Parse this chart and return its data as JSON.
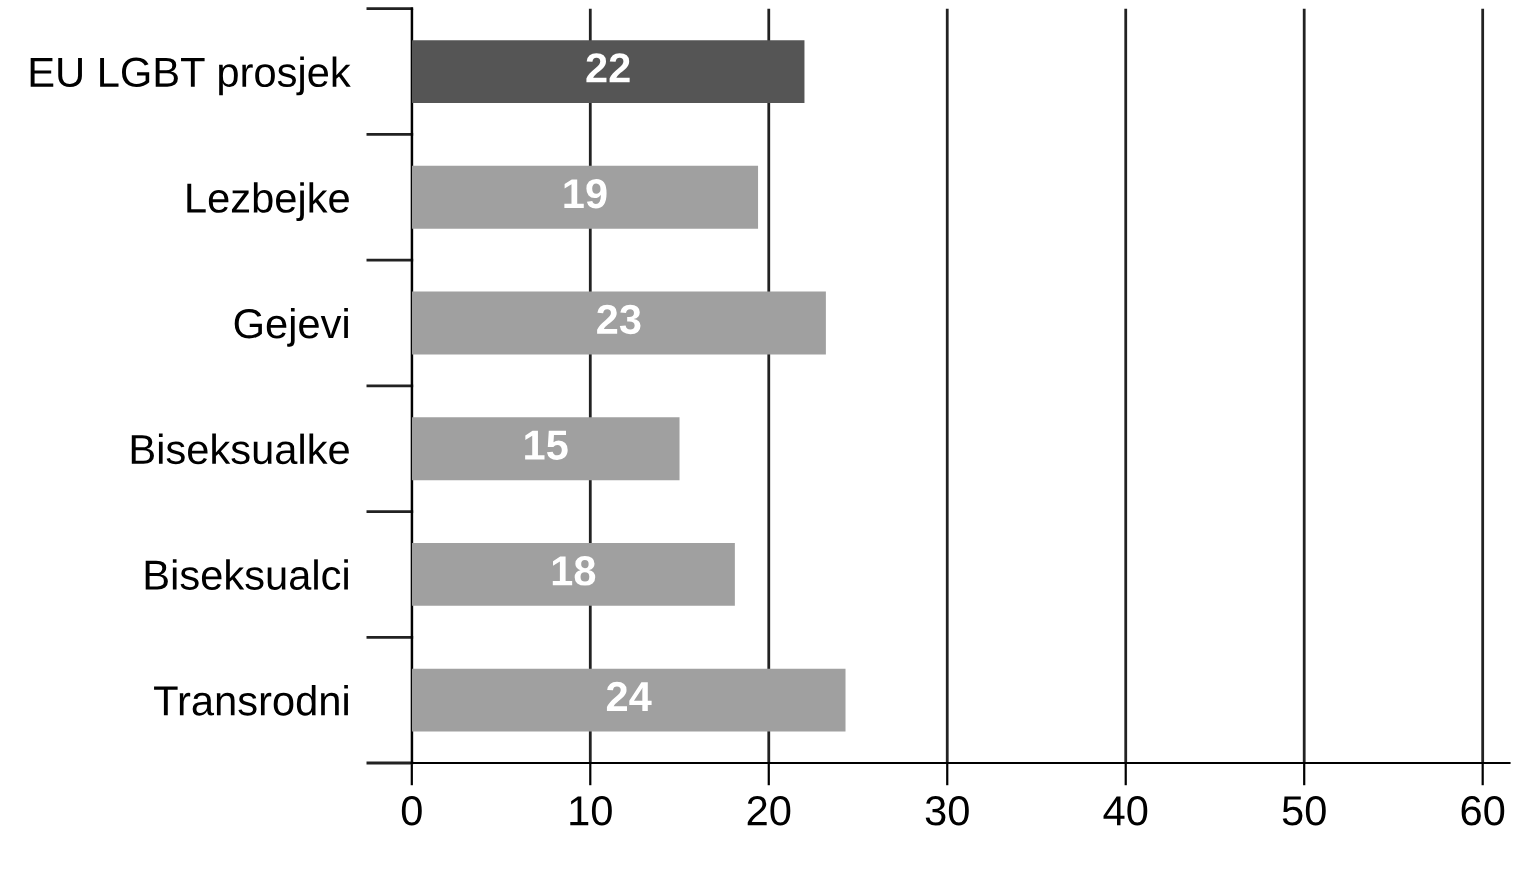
{
  "chart_data": {
    "type": "bar",
    "orientation": "horizontal",
    "categories": [
      "EU LGBT prosjek",
      "Lezbejke",
      "Gejevi",
      "Biseksualke",
      "Biseksualci",
      "Transrodni"
    ],
    "values": [
      22,
      19.4,
      23.2,
      15,
      18.1,
      24.3
    ],
    "value_labels": [
      "22",
      "19",
      "23",
      "15",
      "18",
      "24"
    ],
    "colors": [
      "#555555",
      "#a0a0a0",
      "#a0a0a0",
      "#a0a0a0",
      "#a0a0a0",
      "#a0a0a0"
    ],
    "xlim": [
      0,
      61.5
    ],
    "xticks": [
      0,
      10,
      20,
      30,
      40,
      50,
      60
    ],
    "grid": "x"
  }
}
